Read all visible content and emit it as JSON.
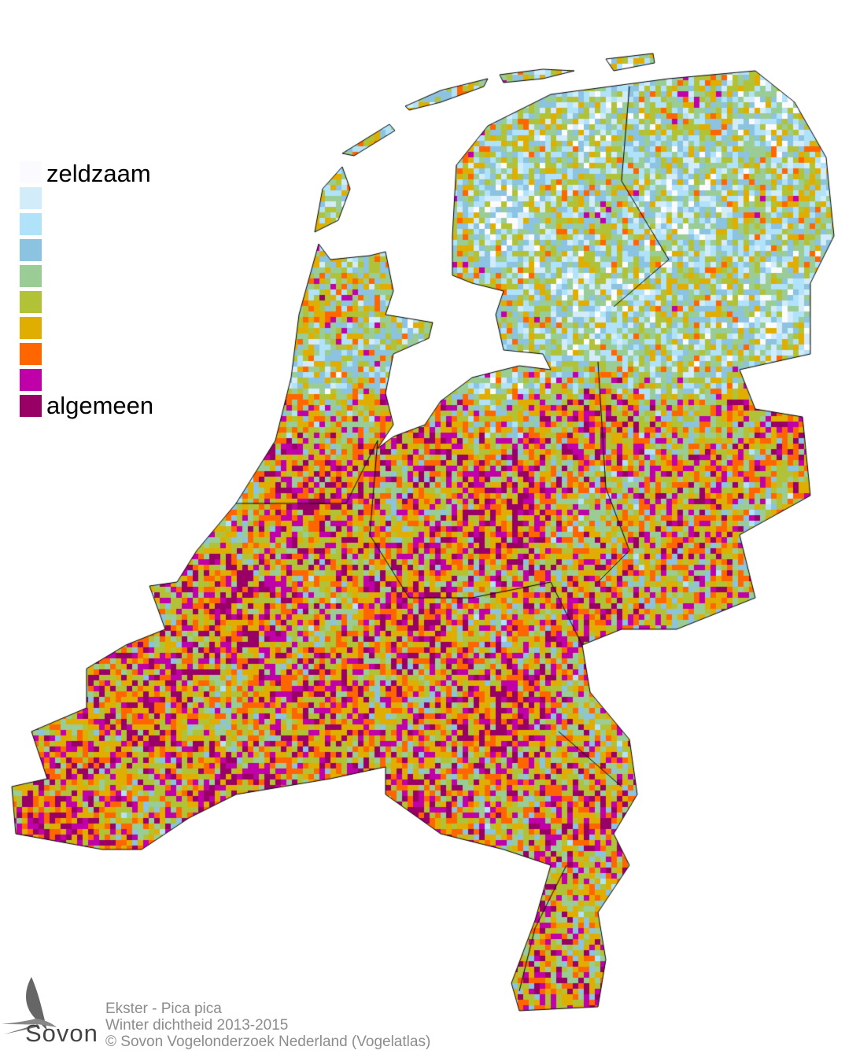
{
  "map": {
    "type": "density-grid",
    "region": "Nederland",
    "boundary_color": "#000000"
  },
  "legend": {
    "low_label": "zeldzaam",
    "high_label": "algemeen",
    "colors": [
      "#fbfbff",
      "#d3ecfa",
      "#b0e2fa",
      "#8bc3e0",
      "#9acd96",
      "#b2c236",
      "#e0ae00",
      "#ff6600",
      "#c000a8",
      "#990066"
    ]
  },
  "footer": {
    "line1": "Ekster - Pica pica",
    "line2": "Winter dichtheid 2013-2015",
    "line3": "© Sovon Vogelonderzoek Nederland (Vogelatlas)"
  },
  "logo": {
    "text": "Sovon"
  }
}
